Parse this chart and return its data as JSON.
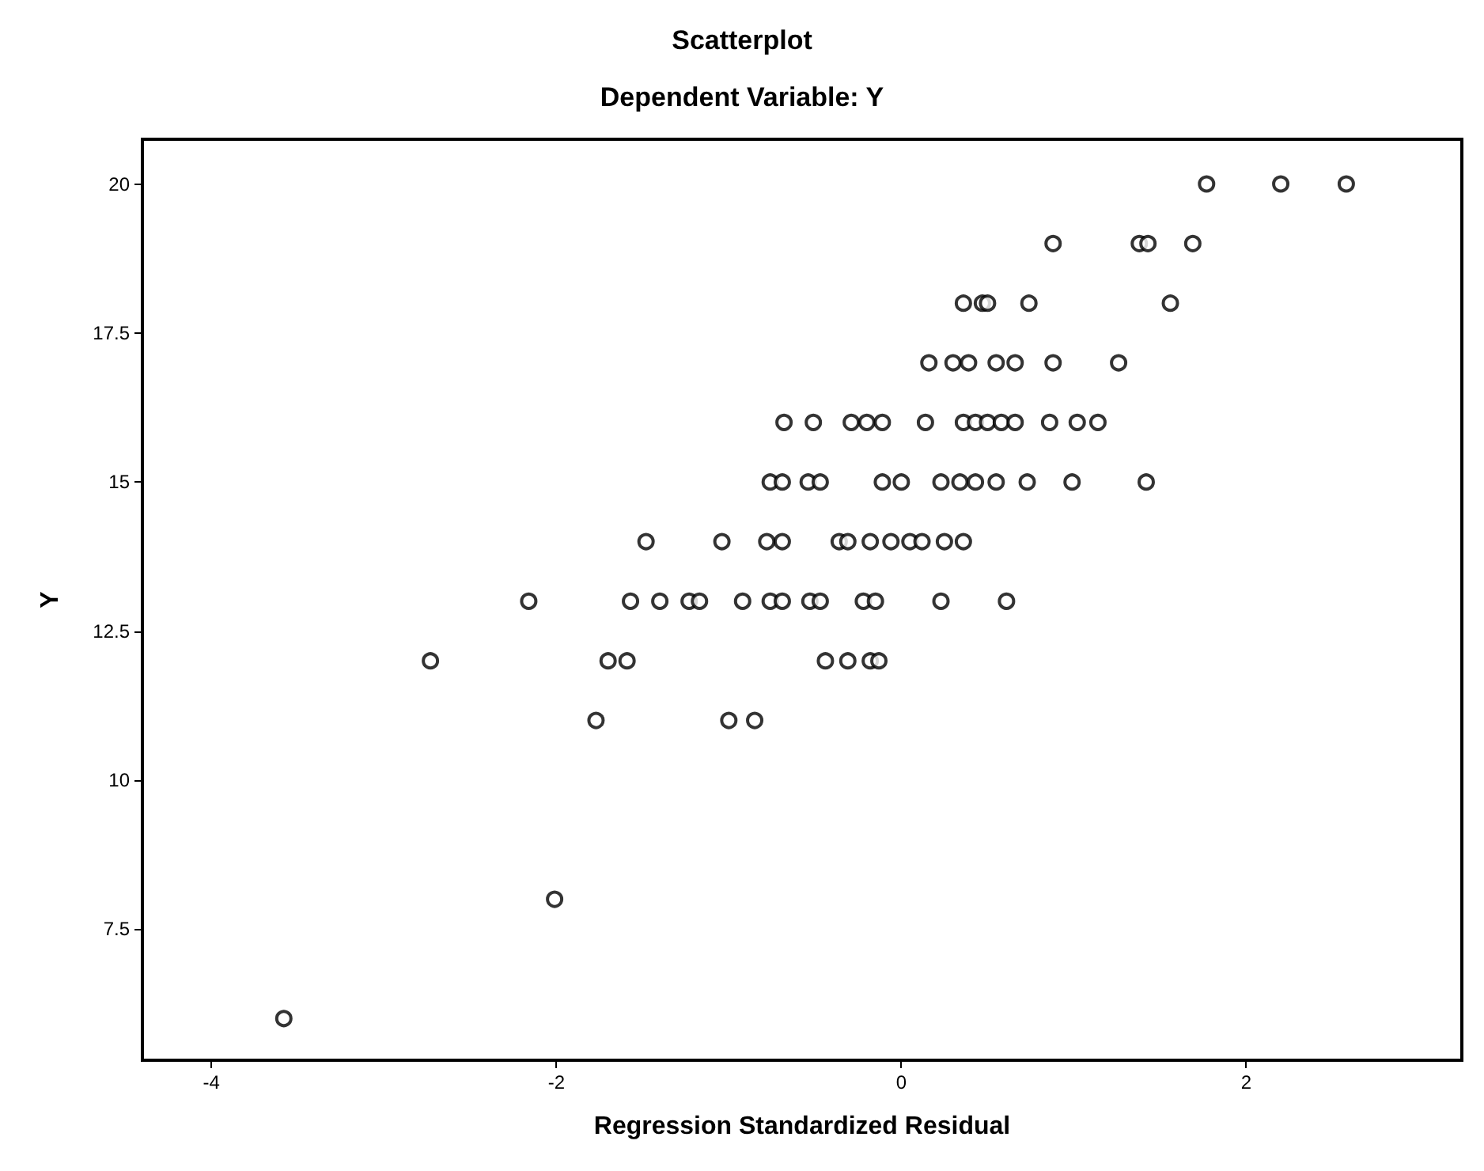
{
  "chart_data": {
    "type": "scatter",
    "title": "Scatterplot",
    "subtitle": "Dependent Variable: Y",
    "xlabel": "Regression Standardized Residual",
    "ylabel": "Y",
    "xlim": [
      -4.4,
      3.25
    ],
    "xticks": [
      -4,
      -2,
      0,
      2
    ],
    "ylim": [
      5.3,
      20.75
    ],
    "yticks": [
      7.5,
      10,
      12.5,
      15,
      17.5,
      20
    ],
    "grid": false,
    "marker": "circle",
    "series": [
      {
        "color": "#000000",
        "x": [
          1.77,
          2.2,
          2.58,
          0.88,
          1.38,
          1.43,
          1.69,
          0.36,
          0.47,
          0.5,
          0.74,
          1.56,
          0.16,
          0.3,
          0.39,
          0.55,
          0.66,
          0.88,
          1.26,
          -0.68,
          -0.51,
          -0.29,
          -0.2,
          -0.11,
          0.14,
          0.36,
          0.43,
          0.5,
          0.58,
          0.66,
          0.86,
          1.02,
          1.14,
          -0.76,
          -0.69,
          -0.54,
          -0.47,
          -0.11,
          0.0,
          0.23,
          0.34,
          0.43,
          0.55,
          0.73,
          0.99,
          1.42,
          -1.48,
          -1.04,
          -0.78,
          -0.69,
          -0.36,
          -0.31,
          -0.18,
          -0.06,
          0.05,
          0.12,
          0.25,
          0.36,
          -2.16,
          -1.57,
          -1.4,
          -1.23,
          -1.17,
          -0.92,
          -0.76,
          -0.69,
          -0.53,
          -0.47,
          -0.22,
          -0.15,
          0.23,
          0.61,
          -2.73,
          -1.7,
          -1.59,
          -0.44,
          -0.31,
          -0.18,
          -0.13,
          -1.77,
          -1.0,
          -0.85,
          -2.01,
          -3.58
        ],
        "values": [
          20,
          20,
          20,
          19,
          19,
          19,
          19,
          18,
          18,
          18,
          18,
          18,
          17,
          17,
          17,
          17,
          17,
          17,
          17,
          16,
          16,
          16,
          16,
          16,
          16,
          16,
          16,
          16,
          16,
          16,
          16,
          16,
          16,
          15,
          15,
          15,
          15,
          15,
          15,
          15,
          15,
          15,
          15,
          15,
          15,
          15,
          14,
          14,
          14,
          14,
          14,
          14,
          14,
          14,
          14,
          14,
          14,
          14,
          13,
          13,
          13,
          13,
          13,
          13,
          13,
          13,
          13,
          13,
          13,
          13,
          13,
          13,
          12,
          12,
          12,
          12,
          12,
          12,
          12,
          11,
          11,
          11,
          8,
          6
        ]
      }
    ]
  }
}
